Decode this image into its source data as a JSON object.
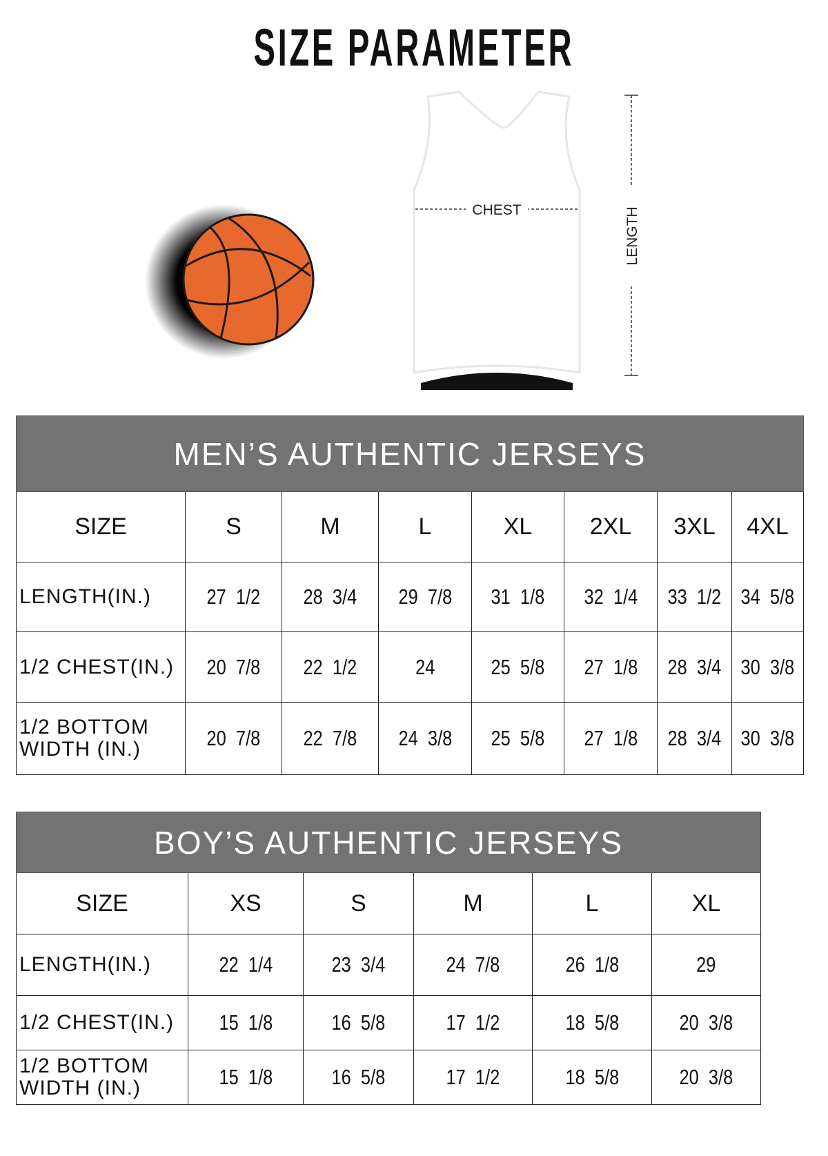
{
  "title": "SIZE  PARAMETER",
  "diagram": {
    "chest_label": "CHEST",
    "length_label": "LENGTH",
    "ball_color": "#e8692e",
    "header_color": "#737373"
  },
  "men": {
    "heading": "MEN’S AUTHENTIC JERSEYS",
    "columns": [
      "SIZE",
      "S",
      "M",
      "L",
      "XL",
      "2XL",
      "3XL",
      "4XL"
    ],
    "rows": [
      {
        "label": "LENGTH(IN.)",
        "values": [
          "27  1/2",
          "28  3/4",
          "29  7/8",
          "31  1/8",
          "32  1/4",
          "33  1/2",
          "34  5/8"
        ]
      },
      {
        "label": "1/2 CHEST(IN.)",
        "values": [
          "20  7/8",
          "22  1/2",
          "24",
          "25  5/8",
          "27  1/8",
          "28  3/4",
          "30  3/8"
        ]
      },
      {
        "label": "1/2 BOTTOM WIDTH  (IN.)",
        "values": [
          "20  7/8",
          "22  7/8",
          "24  3/8",
          "25  5/8",
          "27  1/8",
          "28  3/4",
          "30  3/8"
        ]
      }
    ]
  },
  "boys": {
    "heading": "BOY’S AUTHENTIC JERSEYS",
    "columns": [
      "SIZE",
      "XS",
      "S",
      "M",
      "L",
      "XL"
    ],
    "rows": [
      {
        "label": "LENGTH(IN.)",
        "values": [
          "22  1/4",
          "23  3/4",
          "24  7/8",
          "26  1/8",
          "29"
        ]
      },
      {
        "label": "1/2 CHEST(IN.)",
        "values": [
          "15  1/8",
          "16  5/8",
          "17  1/2",
          "18  5/8",
          "20  3/8"
        ]
      },
      {
        "label": "1/2 BOTTOM WIDTH  (IN.)",
        "values": [
          "15  1/8",
          "16  5/8",
          "17  1/2",
          "18  5/8",
          "20  3/8"
        ]
      }
    ]
  }
}
